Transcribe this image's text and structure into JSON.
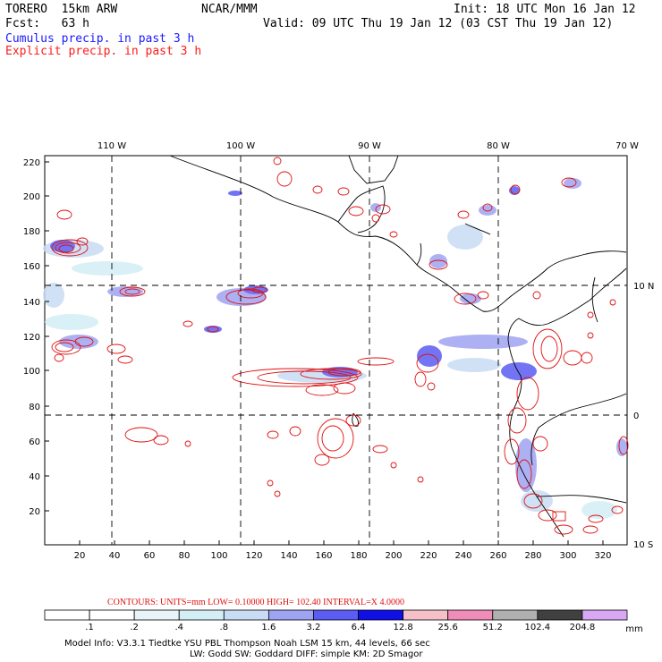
{
  "header": {
    "model": "TORERO  15km ARW",
    "org": "NCAR/MMM",
    "init": "Init: 18 UTC Mon 16 Jan 12",
    "fcst": "Fcst:   63 h",
    "valid": "Valid: 09 UTC Thu 19 Jan 12 (03 CST Thu 19 Jan 12)",
    "line1": "Cumulus precip. in past 3 h",
    "line2": "Explicit precip. in past 3 h"
  },
  "axes": {
    "lon_labels": [
      "110 W",
      "100 W",
      "90 W",
      "80 W",
      "70 W"
    ],
    "lat_labels": [
      "10 N",
      "0",
      "10 S"
    ],
    "y_ticks": [
      "220",
      "200",
      "180",
      "160",
      "140",
      "120",
      "100",
      "80",
      "60",
      "40",
      "20"
    ],
    "x_ticks": [
      "20",
      "40",
      "60",
      "80",
      "100",
      "120",
      "140",
      "160",
      "180",
      "200",
      "220",
      "240",
      "260",
      "280",
      "300",
      "320"
    ]
  },
  "contours_line": {
    "label": "CONTOURS:  UNITS=mm  LOW= 0.10000      HIGH=  102.40      INTERVAL=X  4.0000"
  },
  "colorbar": {
    "labels": [
      ".1",
      ".2",
      ".4",
      ".8",
      "1.6",
      "3.2",
      "6.4",
      "12.8",
      "25.6",
      "51.2",
      "102.4",
      "204.8"
    ],
    "unit": "mm",
    "colors": [
      "#ffffff",
      "#ffffff",
      "#e8f4f8",
      "#d4eef6",
      "#c8dcf5",
      "#9fa4f2",
      "#5a5cf2",
      "#1010e6",
      "#f5c0c8",
      "#f08cb8",
      "#b0b0b0",
      "#404040",
      "#d8a8f5"
    ]
  },
  "footer": {
    "line1": "Model Info: V3.3.1    Tiedtke YSU PBL   Thompson     Noah LSM  15 km,   44 levels,   66 sec",
    "line2": "LW: Godd SW: Goddard DIFF: simple KM: 2D Smagor"
  }
}
